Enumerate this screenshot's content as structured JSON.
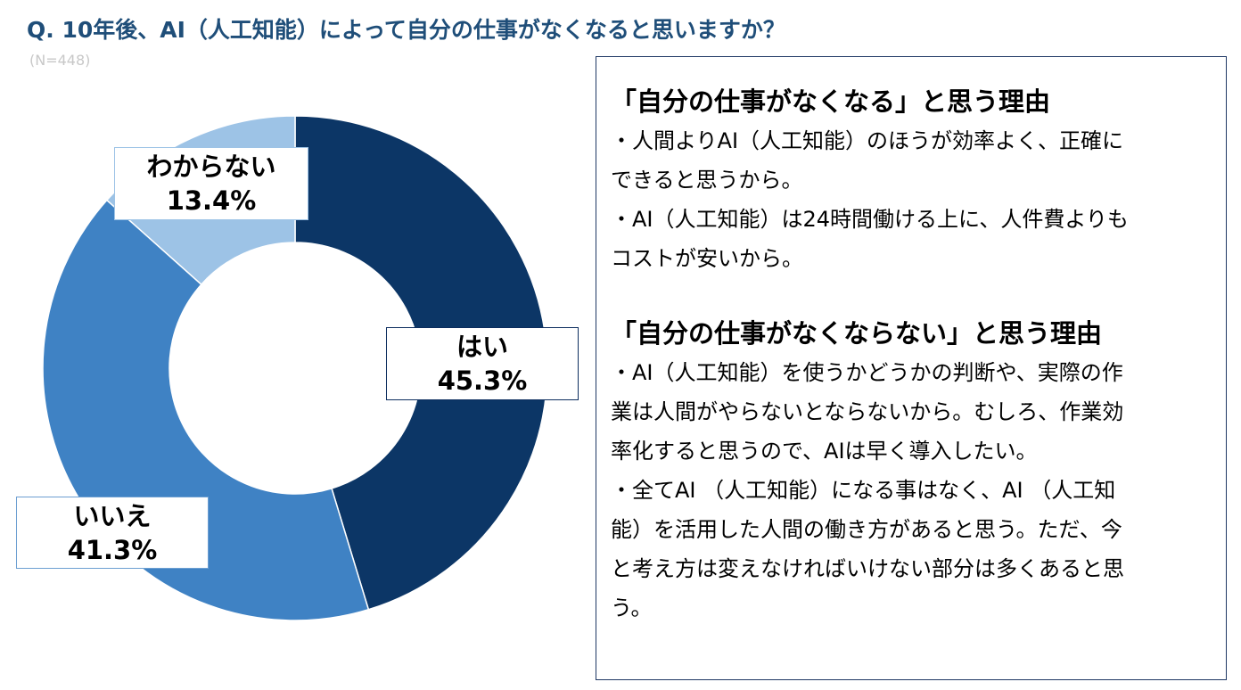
{
  "question": "Q. 10年後、AI（人工知能）によって自分の仕事がなくなると思いますか？",
  "sample_size": "(N=448)",
  "chart_data": {
    "type": "pie",
    "donut": true,
    "categories": [
      "はい",
      "いいえ",
      "わからない"
    ],
    "values": [
      45.3,
      41.3,
      13.4
    ],
    "value_labels": [
      "45.3%",
      "41.3%",
      "13.4%"
    ],
    "colors": [
      "#0c3666",
      "#3f82c4",
      "#9dc3e6"
    ],
    "start": "12 o'clock",
    "direction": "clockwise"
  },
  "reasons": [
    {
      "heading": "「自分の仕事がなくなる」と思う理由",
      "lines": [
        "・人間よりAI（人工知能）のほうが効率よく、正確に",
        "できると思うから。",
        "・AI（人工知能）は24時間働ける上に、人件費よりも",
        "コストが安いから。"
      ]
    },
    {
      "heading": "「自分の仕事がなくならない」と思う理由",
      "lines": [
        "・AI（人工知能）を使うかどうかの判断や、実際の作",
        "業は人間がやらないとならないから。むしろ、作業効",
        "率化すると思うので、AIは早く導入したい。",
        "・全てAI （人工知能）になる事はなく、AI （人工知",
        "能）を活用した人間の働き方があると思う。ただ、今",
        "と考え方は変えなければいけない部分は多くあると思",
        "う。"
      ]
    }
  ]
}
